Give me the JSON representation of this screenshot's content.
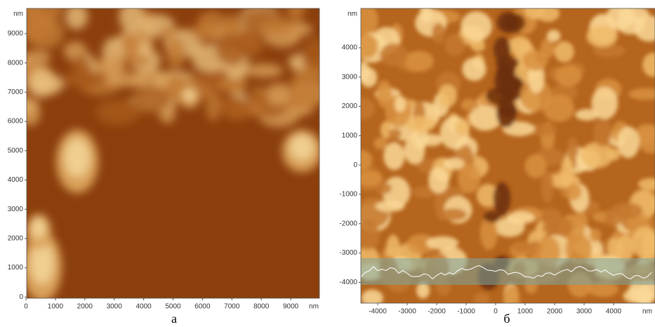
{
  "panels": [
    {
      "caption": "а",
      "y_axis": {
        "unit": "nm",
        "ticks": [
          "9000",
          "8000",
          "7000",
          "6000",
          "5000",
          "4000",
          "3000",
          "2000",
          "1000",
          "0"
        ]
      },
      "x_axis": {
        "unit": "nm",
        "ticks": [
          "0",
          "1000",
          "2000",
          "3000",
          "4000",
          "5000",
          "6000",
          "7000",
          "8000",
          "9000"
        ]
      }
    },
    {
      "caption": "б",
      "y_axis": {
        "unit": "nm",
        "ticks": [
          "4000",
          "3000",
          "2000",
          "1000",
          "0",
          "-1000",
          "-2000",
          "-3000",
          "-4000"
        ]
      },
      "x_axis": {
        "unit": "nm",
        "ticks": [
          "-4000",
          "-3000",
          "-2000",
          "-1000",
          "0",
          "1000",
          "2000",
          "3000",
          "4000"
        ]
      }
    }
  ]
}
